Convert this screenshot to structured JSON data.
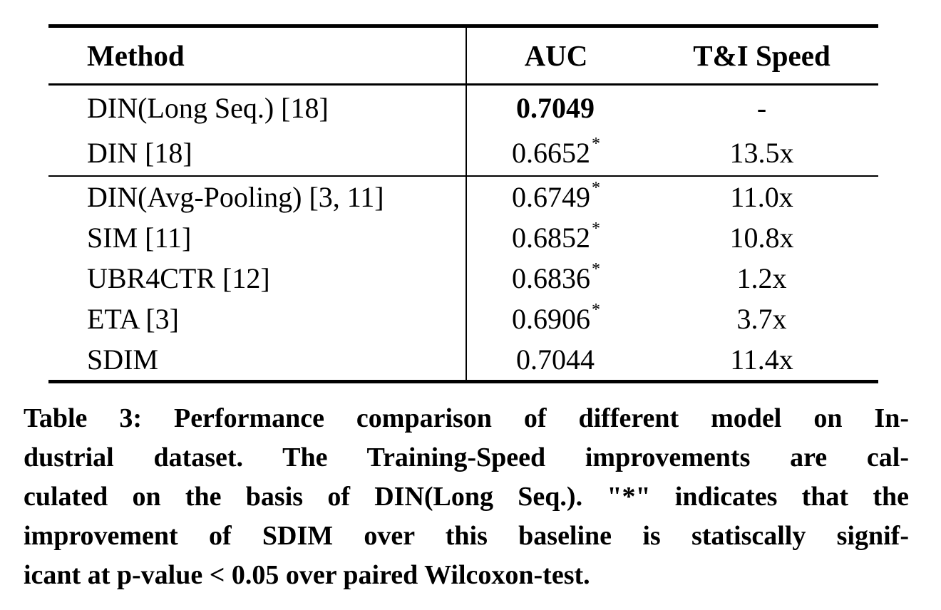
{
  "table": {
    "columns": {
      "method": "Method",
      "auc": "AUC",
      "speed": "T&I Speed"
    },
    "groups": [
      {
        "rows": [
          {
            "method": "DIN(Long Seq.) [18]",
            "auc": "0.7049",
            "auc_sup": "",
            "speed": "-"
          },
          {
            "method": "DIN [18]",
            "auc": "0.6652",
            "auc_sup": "*",
            "speed": "13.5x"
          }
        ]
      },
      {
        "rows": [
          {
            "method": "DIN(Avg-Pooling) [3, 11]",
            "auc": "0.6749",
            "auc_sup": "*",
            "speed": "11.0x"
          },
          {
            "method": "SIM [11]",
            "auc": "0.6852",
            "auc_sup": "*",
            "speed": "10.8x"
          },
          {
            "method": "UBR4CTR [12]",
            "auc": "0.6836",
            "auc_sup": "*",
            "speed": "1.2x"
          },
          {
            "method": "ETA [3]",
            "auc": "0.6906",
            "auc_sup": "*",
            "speed": "3.7x"
          },
          {
            "method": "SDIM",
            "auc": "0.7044",
            "auc_sup": "",
            "speed": "11.4x"
          }
        ]
      }
    ],
    "best_auc_row": "DIN(Long Seq.) [18]"
  },
  "caption": {
    "label": "Table 3:",
    "lines": [
      "Table 3:  Performance comparison of different model on In-",
      "dustrial dataset. The Training-Speed improvements are cal-",
      "culated on the basis of DIN(Long Seq.). \"*\" indicates that the",
      "improvement of SDIM over this baseline is statiscally signif-",
      "icant at p-value < 0.05 over paired Wilcoxon-test."
    ]
  },
  "colors": {
    "text": "#000000",
    "background": "#ffffff"
  }
}
